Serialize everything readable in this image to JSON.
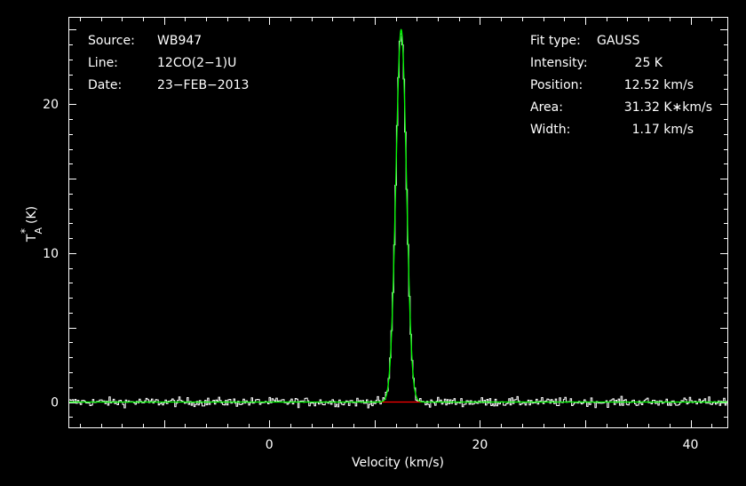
{
  "info_left": [
    {
      "label": "Source:",
      "value": "WB947"
    },
    {
      "label": "Line:",
      "value": "12CO(2−1)U"
    },
    {
      "label": "Date:",
      "value": "23−FEB−2013"
    }
  ],
  "info_right": [
    {
      "label": "Fit type:",
      "value": "GAUSS"
    },
    {
      "label": "Intensity:",
      "value": "25 K"
    },
    {
      "label": "Position:",
      "value": "12.52 km/s"
    },
    {
      "label": "Area:",
      "value": "31.32 K∗km/s"
    },
    {
      "label": "Width:",
      "value": "1.17 km/s"
    }
  ],
  "chart_data": {
    "type": "line",
    "xlabel": "Velocity (km/s)",
    "ylabel_main": "T",
    "ylabel_sup": "*",
    "ylabel_sub": "A",
    "ylabel_unit": "(K)",
    "xlim": [
      -19,
      43.5
    ],
    "ylim": [
      -1.7,
      25.8
    ],
    "x_ticks": [
      0,
      20,
      40
    ],
    "x_tick_labels": [
      "0",
      "20",
      "40"
    ],
    "y_ticks": [
      0,
      10,
      20
    ],
    "y_tick_labels": [
      "0",
      "10",
      "20"
    ],
    "series": [
      {
        "type": "spectrum",
        "color": "#ffffff",
        "peak": 24.9,
        "center": 12.52,
        "fwhm": 1.17,
        "noise_rms": 0.15,
        "channel_width": 0.13
      },
      {
        "type": "gaussian-fit",
        "color": "#00ff00",
        "intensity": 25,
        "position": 12.52,
        "width": 1.17,
        "area": 31.32
      },
      {
        "type": "fit-baseline",
        "color": "#ff0000",
        "x_range": [
          10.5,
          14.5
        ]
      }
    ],
    "grid": false,
    "legend": "none"
  }
}
